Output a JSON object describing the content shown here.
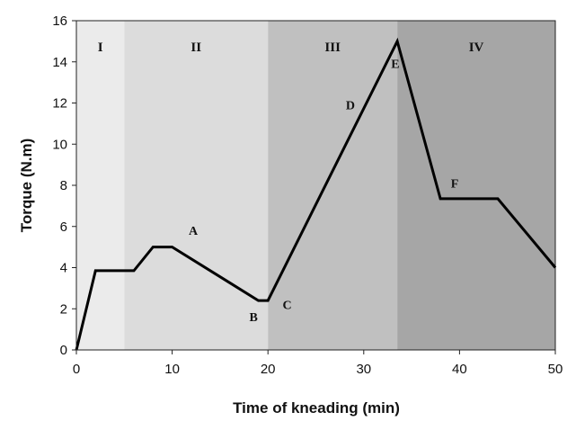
{
  "chart_data": {
    "type": "line",
    "xlabel": "Time of kneading (min)",
    "ylabel": "Torque (N.m)",
    "xlim": [
      0,
      50
    ],
    "ylim": [
      0,
      16
    ],
    "xticks": [
      0,
      10,
      20,
      30,
      40,
      50
    ],
    "yticks": [
      0,
      2,
      4,
      6,
      8,
      10,
      12,
      14,
      16
    ],
    "grid": false,
    "regions": [
      {
        "label": "I",
        "x_start": 0,
        "x_end": 5,
        "color": "#ebebeb"
      },
      {
        "label": "II",
        "x_start": 5,
        "x_end": 20,
        "color": "#dcdcdc"
      },
      {
        "label": "III",
        "x_start": 20,
        "x_end": 33.5,
        "color": "#c0c0c0"
      },
      {
        "label": "IV",
        "x_start": 33.5,
        "x_end": 50,
        "color": "#a6a6a6"
      }
    ],
    "series": [
      {
        "color": "#000000",
        "x": [
          0,
          2,
          6,
          8,
          10,
          19,
          20,
          33.5,
          38,
          44,
          50
        ],
        "y": [
          0,
          3.85,
          3.85,
          5.0,
          5.0,
          2.4,
          2.4,
          15.0,
          7.35,
          7.35,
          4.0
        ]
      }
    ],
    "annotations": [
      {
        "text": "A",
        "x": 12.2,
        "y": 5.6
      },
      {
        "text": "B",
        "x": 18.5,
        "y": 1.4
      },
      {
        "text": "C",
        "x": 22.0,
        "y": 2.0
      },
      {
        "text": "D",
        "x": 28.6,
        "y": 11.7
      },
      {
        "text": "E",
        "x": 33.3,
        "y": 13.7
      },
      {
        "text": "F",
        "x": 39.5,
        "y": 7.9
      }
    ]
  }
}
